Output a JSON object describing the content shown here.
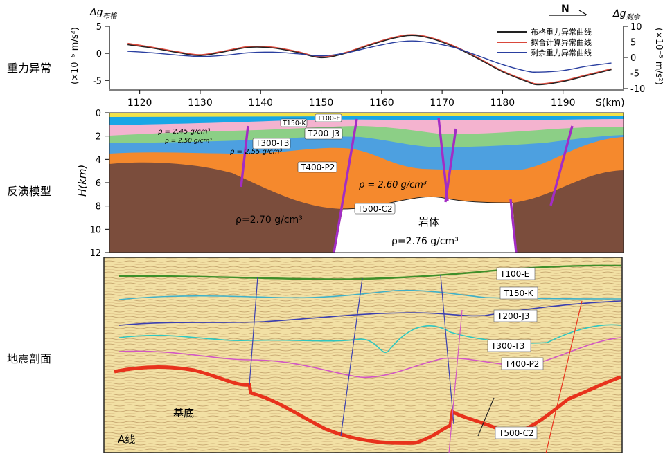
{
  "row_labels": {
    "gravity": "重力异常",
    "model": "反演模型",
    "seismic": "地震剖面"
  },
  "gravity": {
    "left_axis": {
      "title": "Δg",
      "title_sub": "布格",
      "unit": "(×10⁻⁵ m/s²)",
      "ticks": [
        5,
        0,
        -5
      ]
    },
    "right_axis": {
      "title": "Δg",
      "title_sub": "剩余",
      "unit": "(×10⁻⁵ m/s²)",
      "ticks": [
        10,
        5,
        0,
        -5,
        -10
      ]
    },
    "north_label": "N",
    "legend": [
      {
        "label": "布格重力异常曲线",
        "color": "#222222"
      },
      {
        "label": "拟合计算异常曲线",
        "color": "#d9483b"
      },
      {
        "label": "剩余重力异常曲线",
        "color": "#2a3fa0"
      }
    ],
    "x_ticks": [
      "1120",
      "1130",
      "1140",
      "1150",
      "1160",
      "1170",
      "1180",
      "1190"
    ],
    "x_unit": "S(km)"
  },
  "chart_data": {
    "type": "line",
    "xlabel": "S(km)",
    "ylim": [
      -6.5,
      5
    ],
    "ylim_right": [
      -10,
      10
    ],
    "series": [
      {
        "name": "布格重力异常曲线",
        "x": [
          1118,
          1122,
          1126,
          1130,
          1134,
          1138,
          1142,
          1146,
          1150,
          1154,
          1158,
          1162,
          1165,
          1168,
          1172,
          1176,
          1180,
          1184,
          1186,
          1190,
          1194,
          1198
        ],
        "values": [
          1.6,
          1.0,
          0.2,
          -0.4,
          0.3,
          1.1,
          1.0,
          0.2,
          -0.8,
          0.0,
          1.5,
          2.8,
          3.3,
          2.8,
          1.2,
          -1.0,
          -3.4,
          -5.2,
          -5.8,
          -5.2,
          -4.1,
          -3.0
        ]
      },
      {
        "name": "拟合计算异常曲线",
        "x": [
          1118,
          1122,
          1126,
          1130,
          1134,
          1138,
          1142,
          1146,
          1150,
          1154,
          1158,
          1162,
          1165,
          1168,
          1172,
          1176,
          1180,
          1184,
          1186,
          1190,
          1194,
          1198
        ],
        "values": [
          1.8,
          1.1,
          0.3,
          -0.3,
          0.4,
          1.2,
          1.1,
          0.3,
          -0.7,
          0.1,
          1.6,
          2.9,
          3.4,
          2.9,
          1.3,
          -0.9,
          -3.3,
          -5.1,
          -5.7,
          -5.1,
          -4.0,
          -2.9
        ]
      },
      {
        "name": "剩余重力异常曲线",
        "x": [
          1118,
          1122,
          1126,
          1130,
          1134,
          1138,
          1142,
          1146,
          1150,
          1154,
          1158,
          1162,
          1165,
          1168,
          1172,
          1176,
          1180,
          1184,
          1186,
          1190,
          1194,
          1198
        ],
        "values": [
          2.0,
          1.5,
          0.8,
          0.3,
          0.7,
          1.5,
          1.7,
          1.2,
          0.5,
          1.4,
          3.2,
          4.8,
          5.3,
          4.8,
          3.2,
          0.5,
          -2.3,
          -4.4,
          -4.7,
          -4.2,
          -2.8,
          -1.8
        ]
      }
    ]
  },
  "model": {
    "y_label": "H(km)",
    "y_ticks": [
      "0",
      "2",
      "4",
      "6",
      "8",
      "10",
      "12"
    ],
    "horizons": [
      "T100-E",
      "T150-K",
      "T200-J3",
      "T300-T3",
      "T400-P2",
      "T500-C2"
    ],
    "density_labels": {
      "d245": "ρ = 2.45 g/cm³",
      "d250": "ρ = 2.50 g/cm³",
      "d255": "ρ = 2.55 g/cm³",
      "d260": "ρ = 2.60 g/cm³",
      "d270": "ρ=2.70 g/cm³",
      "body": "岩体",
      "d276": "ρ=2.76 g/cm³"
    },
    "colors": {
      "yellow": "#f2e24a",
      "blue": "#19a6e6",
      "pink": "#f4b3cf",
      "green": "#8ccf86",
      "lightblue": "#4da0e0",
      "orange": "#f5892d",
      "brown": "#7b4d3c",
      "fault": "#a32cc4"
    }
  },
  "seismic": {
    "horizons": [
      "T100-E",
      "T150-K",
      "T200-J3",
      "T300-T3",
      "T400-P2",
      "T500-C2"
    ],
    "basement_label": "基底",
    "line_label": "A线"
  }
}
